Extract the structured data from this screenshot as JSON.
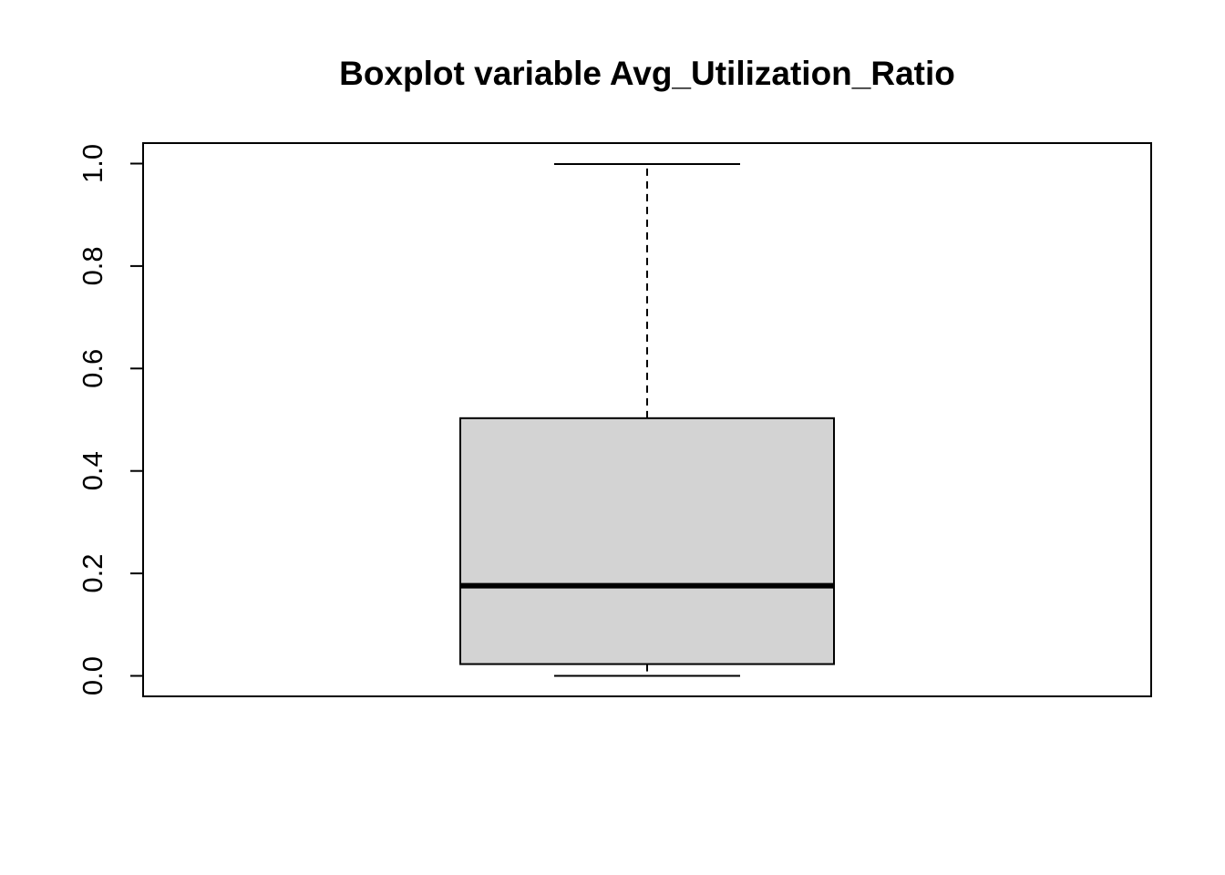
{
  "chart_data": {
    "type": "boxplot",
    "title": "Boxplot variable Avg_Utilization_Ratio",
    "xlabel": "",
    "ylabel": "",
    "ylim": [
      -0.04,
      1.04
    ],
    "yticks": [
      0.0,
      0.2,
      0.4,
      0.6,
      0.8,
      1.0
    ],
    "ytick_labels": [
      "0.0",
      "0.2",
      "0.4",
      "0.6",
      "0.8",
      "1.0"
    ],
    "box": {
      "min": 0.0,
      "q1": 0.023,
      "median": 0.176,
      "q3": 0.503,
      "max": 0.999
    },
    "grid": false,
    "colors": {
      "box_fill": "#d3d3d3",
      "stroke": "#000000"
    }
  }
}
